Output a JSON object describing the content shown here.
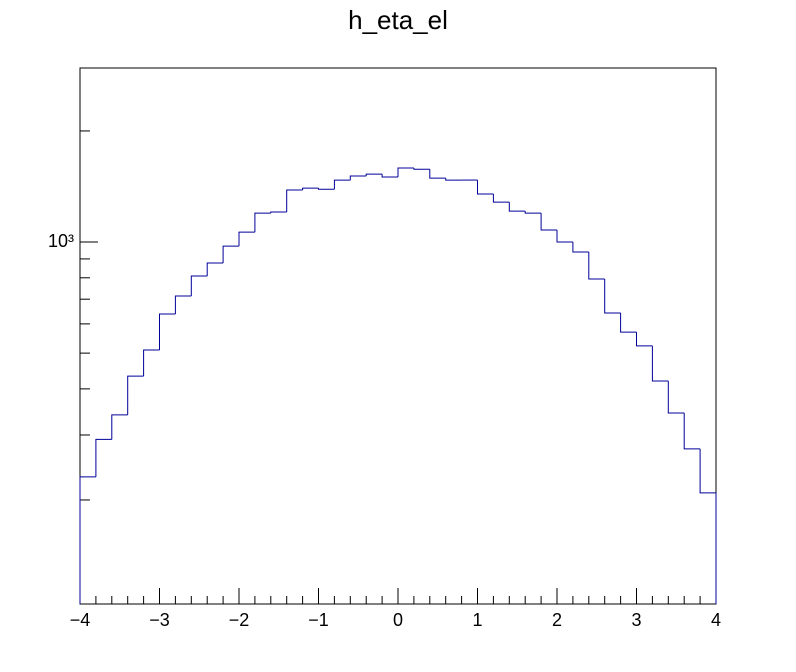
{
  "chart_data": {
    "type": "histogram",
    "title": "h_eta_el",
    "bins": [
      -4,
      -3.8,
      -3.6,
      -3.4,
      -3.2,
      -3,
      -2.8,
      -2.6,
      -2.4,
      -2.2,
      -2,
      -1.8,
      -1.6,
      -1.4,
      -1.2,
      -1,
      -0.8,
      -0.6,
      -0.4,
      -0.2,
      0,
      0.2,
      0.4,
      0.6,
      0.8,
      1,
      1.2,
      1.4,
      1.6,
      1.8,
      2,
      2.2,
      2.4,
      2.6,
      2.8,
      3,
      3.2,
      3.4,
      3.6,
      3.8,
      4
    ],
    "counts": [
      231,
      292,
      340,
      433,
      510,
      638,
      714,
      809,
      877,
      975,
      1064,
      1198,
      1206,
      1383,
      1400,
      1390,
      1472,
      1510,
      1528,
      1500,
      1587,
      1575,
      1490,
      1472,
      1472,
      1349,
      1283,
      1213,
      1198,
      1078,
      1000,
      940,
      794,
      642,
      570,
      523,
      420,
      344,
      275,
      209
    ],
    "color": "#000099",
    "xlim": [
      -4,
      4
    ],
    "xticks": [
      {
        "value": -4,
        "label": "−4"
      },
      {
        "value": -3,
        "label": "−3"
      },
      {
        "value": -2,
        "label": "−2"
      },
      {
        "value": -1,
        "label": "−1"
      },
      0,
      1,
      2,
      3,
      4
    ],
    "xminorticks": [
      -3.8,
      -3.6,
      -3.4,
      -3.2,
      -2.8,
      -2.6,
      -2.4,
      -2.2,
      -1.8,
      -1.6,
      -1.4,
      -1.2,
      -0.8,
      -0.6,
      -0.4,
      -0.2,
      0.2,
      0.4,
      0.6,
      0.8,
      1.2,
      1.4,
      1.6,
      1.8,
      2.2,
      2.4,
      2.6,
      2.8,
      3.2,
      3.4,
      3.6,
      3.8
    ],
    "ylim": [
      104.5,
      2962
    ],
    "ylog": true,
    "yticks": [
      {
        "value": 1000,
        "label": "10³"
      }
    ],
    "yminorticks": [
      200,
      300,
      400,
      500,
      600,
      700,
      800,
      900,
      2000
    ]
  }
}
